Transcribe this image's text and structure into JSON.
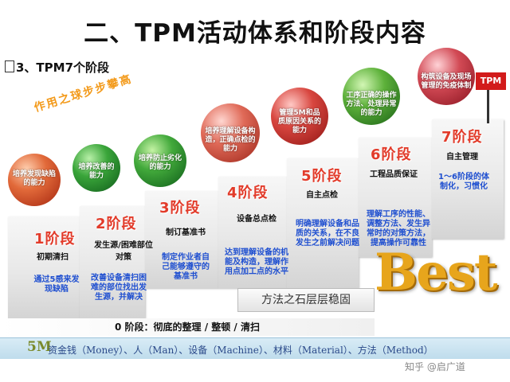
{
  "title": "二、TPM活动体系和阶段内容",
  "subtitle": "3、TPM7个阶段",
  "slogan": "作用之球步步攀高",
  "stages": [
    {
      "num": "1阶段",
      "label": "初期清扫",
      "desc": "通过5感来发现缺陷",
      "ball": "培养发现缺陷的能力",
      "ball_color": "#d8441f"
    },
    {
      "num": "2阶段",
      "label": "发生源/困难部位对策",
      "desc": "改善设备清扫困难的部位找出发生源，并解决",
      "ball": "培养改善的能力",
      "ball_color": "#1d8a2b"
    },
    {
      "num": "3阶段",
      "label": "制订基准书",
      "desc": "制定作业者自己能够遵守的基准书",
      "ball": "培养防止劣化的能力",
      "ball_color": "#238a2a"
    },
    {
      "num": "4阶段",
      "label": "设备总点检",
      "desc": "达到理解设备的机能及构造，理解作用点加工点的水平",
      "ball": "培养理解设备构造，正确点检的能力",
      "ball_color": "#d84a3a"
    },
    {
      "num": "5阶段",
      "label": "自主点检",
      "desc": "明确理解设备和品质的关系，在不良发生之前解决问题",
      "ball": "管理5M和品质原因关系的能力",
      "ball_color": "#c9302e"
    },
    {
      "num": "6阶段",
      "label": "工程品质保证",
      "desc": "理解工序的性能、调整方法、发生异常时的对策方法，提高操作可靠性",
      "ball": "工序正确的操作方法、处理异常的能力",
      "ball_color": "#3f9e2a"
    },
    {
      "num": "7阶段",
      "label": "自主管理",
      "desc": "1～6阶段的体制化，习惯化",
      "ball": "构筑设备及现场管理的免疫体制",
      "ball_color": "#c73a40"
    }
  ],
  "best": "Best",
  "cornerstone": "方法之石层层稳固",
  "stage_zero": "0 阶段：彻底的整理 / 整顿 / 清扫",
  "flag": "TPM",
  "m5_label": "5M",
  "m5_text": "资金钱（Money）、人（Man）、设备（Machine）、材料（Material）、方法（Method）",
  "watermark": "知乎 @启广道",
  "colors": {
    "stage_number": "#e23b2a",
    "description": "#1f4fd0",
    "slogan": "#f39a1a",
    "best": "#e7a51c",
    "flag": "#d21b1b"
  }
}
